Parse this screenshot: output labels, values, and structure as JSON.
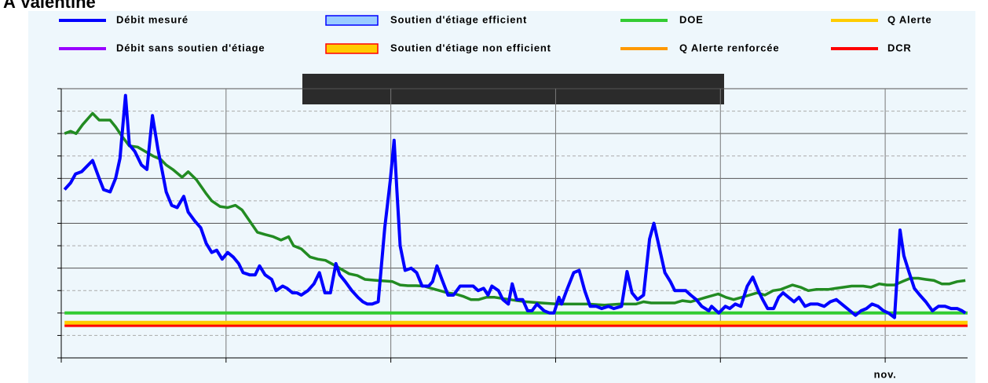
{
  "chart_data": {
    "type": "line",
    "title": "A Valentine",
    "xlim": [
      0,
      165
    ],
    "ylim": [
      0,
      12
    ],
    "xticks": [
      0,
      30,
      60,
      90,
      120,
      150
    ],
    "xtick_labels": [
      {
        "value": 150,
        "label": "nov."
      }
    ],
    "yticks": [
      0,
      1,
      2,
      3,
      4,
      5,
      6,
      7,
      8,
      9,
      10,
      11,
      12
    ],
    "grid": true,
    "legend": [
      {
        "name": "Débit mesuré",
        "color": "#0000ff",
        "kind": "line"
      },
      {
        "name": "Débit sans soutien d'étiage",
        "color": "#9900ff",
        "kind": "line"
      },
      {
        "name": "Soutien d'étiage efficient",
        "color": "#99ccff",
        "border": "#0000ff",
        "kind": "box"
      },
      {
        "name": "Soutien d'étiage non efficient",
        "color": "#ffcc00",
        "border": "#ff0000",
        "kind": "box"
      },
      {
        "name": "DOE",
        "color": "#33cc33",
        "kind": "line"
      },
      {
        "name": "Q Alerte renforcée",
        "color": "#ff9900",
        "kind": "line"
      },
      {
        "name": "Q Alerte",
        "color": "#ffcc00",
        "kind": "line"
      },
      {
        "name": "DCR",
        "color": "#ff0000",
        "kind": "line"
      }
    ],
    "series": [
      {
        "name": "DOE",
        "color": "#33cc33",
        "width": 4,
        "x": [
          0.6,
          165
        ],
        "values": [
          2.0,
          2.0
        ]
      },
      {
        "name": "Q Alerte",
        "color": "#ffcc00",
        "width": 6,
        "x": [
          0.6,
          165
        ],
        "values": [
          1.55,
          1.55
        ]
      },
      {
        "name": "DCR",
        "color": "#ff0000",
        "width": 3,
        "x": [
          0.6,
          165
        ],
        "values": [
          1.43,
          1.43
        ]
      },
      {
        "color": "#228b22",
        "width": 3.5,
        "x": [
          0.6,
          1.7,
          2.7,
          3.9,
          5.7,
          6.9,
          7.9,
          8.9,
          9.9,
          11,
          12.4,
          13.9,
          15.3,
          16.7,
          18.1,
          19.1,
          20.3,
          22,
          23.1,
          24.6,
          26.3,
          27.4,
          28.9,
          30.3,
          31.7,
          32.9,
          34.3,
          35.7,
          37.1,
          38.6,
          40,
          41.4,
          42.3,
          43.7,
          45.3,
          46.7,
          48.1,
          49.6,
          51,
          52.4,
          53.9,
          55.3,
          57.1,
          58.9,
          60.3,
          61.7,
          63.1,
          64.6,
          66,
          67.4,
          68.9,
          70.3,
          71.7,
          73.1,
          74.6,
          76,
          77.4,
          78.9,
          80.3,
          81.7,
          83.1,
          84.6,
          87.4,
          90.3,
          93.1,
          96,
          98.9,
          101.7,
          104.6,
          106,
          107.4,
          110.3,
          111.7,
          113.1,
          114.6,
          116,
          117.4,
          119.6,
          121,
          122.4,
          123.9,
          125.3,
          126.7,
          128.1,
          129.6,
          131,
          133.1,
          134.6,
          136,
          137.4,
          139.6,
          141,
          142.4,
          143.9,
          146,
          147.4,
          148.9,
          150.3,
          151.7,
          153.1,
          154.6,
          156,
          157.4,
          158.9,
          160.3,
          161.7,
          163.1,
          164.6
        ],
        "values": [
          10.0,
          10.1,
          10.0,
          10.4,
          10.9,
          10.6,
          10.6,
          10.6,
          10.3,
          9.9,
          9.45,
          9.4,
          9.2,
          9.0,
          8.85,
          8.6,
          8.4,
          8.05,
          8.3,
          7.94,
          7.35,
          7.0,
          6.75,
          6.7,
          6.8,
          6.6,
          6.1,
          5.6,
          5.5,
          5.4,
          5.25,
          5.4,
          5.0,
          4.86,
          4.5,
          4.4,
          4.35,
          4.15,
          3.95,
          3.75,
          3.67,
          3.5,
          3.46,
          3.43,
          3.4,
          3.25,
          3.22,
          3.22,
          3.2,
          3.1,
          3.0,
          2.9,
          2.85,
          2.75,
          2.6,
          2.6,
          2.7,
          2.7,
          2.65,
          2.6,
          2.55,
          2.5,
          2.45,
          2.4,
          2.4,
          2.4,
          2.35,
          2.4,
          2.4,
          2.5,
          2.45,
          2.45,
          2.45,
          2.55,
          2.5,
          2.6,
          2.7,
          2.85,
          2.7,
          2.6,
          2.7,
          2.8,
          2.9,
          2.8,
          3.0,
          3.05,
          3.25,
          3.15,
          3.0,
          3.05,
          3.05,
          3.1,
          3.15,
          3.2,
          3.2,
          3.15,
          3.3,
          3.25,
          3.25,
          3.4,
          3.55,
          3.55,
          3.5,
          3.45,
          3.3,
          3.3,
          3.4,
          3.45
        ]
      },
      {
        "name": "Débit mesuré",
        "color": "#0000ff",
        "width": 4,
        "x": [
          0.6,
          1.7,
          2.6,
          3.7,
          5.7,
          6.9,
          7.7,
          8.9,
          9.9,
          10.7,
          11.7,
          12.4,
          13.4,
          14.6,
          15.6,
          16.6,
          17.6,
          18.4,
          19.1,
          20.1,
          21.1,
          22.3,
          23.1,
          24.3,
          25.4,
          26.4,
          27.4,
          28.3,
          29.3,
          30.3,
          31.3,
          32.3,
          33.1,
          34.3,
          35.3,
          36.1,
          37.1,
          38.3,
          39.1,
          40.3,
          41.1,
          42.1,
          42.9,
          43.7,
          44.9,
          46.0,
          47.0,
          48.0,
          49.0,
          50.0,
          50.7,
          51.7,
          52.9,
          54.0,
          54.9,
          55.7,
          56.6,
          57.7,
          58.9,
          59.9,
          60.6,
          61.1,
          61.7,
          62.6,
          63.7,
          64.7,
          65.7,
          66.9,
          67.6,
          68.4,
          69.3,
          70.4,
          71.4,
          72.6,
          73.7,
          75.0,
          75.9,
          76.9,
          77.7,
          78.4,
          79.6,
          80.4,
          81.4,
          82.1,
          82.9,
          84.0,
          84.9,
          85.7,
          86.6,
          87.9,
          88.9,
          89.7,
          90.6,
          91.1,
          92.0,
          93.3,
          94.3,
          95.3,
          96.3,
          97.4,
          98.4,
          99.6,
          100.6,
          102.0,
          103.0,
          103.9,
          104.9,
          106.0,
          107.1,
          107.9,
          108.9,
          109.9,
          110.9,
          111.7,
          112.6,
          113.7,
          114.6,
          115.6,
          116.6,
          117.9,
          118.4,
          119.7,
          120.9,
          121.7,
          122.7,
          123.7,
          124.9,
          125.9,
          126.9,
          127.7,
          128.6,
          129.7,
          130.6,
          131.4,
          132.4,
          133.4,
          134.3,
          135.4,
          136.4,
          137.7,
          138.9,
          140.0,
          141.1,
          142.6,
          143.6,
          144.6,
          145.6,
          146.6,
          147.6,
          148.7,
          149.7,
          150.6,
          151.7,
          152.7,
          153.4,
          154.3,
          155.3,
          156.3,
          157.4,
          158.6,
          159.7,
          160.9,
          162.0,
          163.1,
          164.0,
          164.6
        ],
        "values": [
          7.5,
          7.8,
          8.2,
          8.3,
          8.8,
          8.0,
          7.5,
          7.4,
          8.0,
          8.9,
          11.7,
          9.5,
          9.2,
          8.6,
          8.4,
          10.8,
          9.3,
          8.3,
          7.4,
          6.8,
          6.7,
          7.2,
          6.5,
          6.1,
          5.8,
          5.1,
          4.7,
          4.8,
          4.4,
          4.7,
          4.5,
          4.2,
          3.8,
          3.7,
          3.7,
          4.1,
          3.7,
          3.5,
          3.0,
          3.2,
          3.1,
          2.9,
          2.9,
          2.8,
          3.0,
          3.3,
          3.8,
          2.9,
          2.9,
          4.2,
          3.7,
          3.4,
          3.0,
          2.7,
          2.5,
          2.4,
          2.4,
          2.5,
          5.8,
          7.9,
          9.7,
          7.5,
          5.0,
          3.9,
          4.0,
          3.8,
          3.2,
          3.2,
          3.4,
          4.1,
          3.5,
          2.8,
          2.8,
          3.2,
          3.2,
          3.2,
          3.0,
          3.1,
          2.8,
          3.2,
          3.0,
          2.6,
          2.4,
          3.3,
          2.6,
          2.6,
          2.1,
          2.1,
          2.4,
          2.1,
          2.0,
          2.0,
          2.7,
          2.4,
          3.0,
          3.8,
          3.9,
          3.0,
          2.3,
          2.3,
          2.2,
          2.3,
          2.2,
          2.3,
          3.85,
          2.9,
          2.6,
          2.8,
          5.3,
          6.0,
          4.9,
          3.8,
          3.4,
          3.0,
          3.0,
          3.0,
          2.8,
          2.6,
          2.3,
          2.1,
          2.3,
          2.0,
          2.3,
          2.2,
          2.4,
          2.3,
          3.2,
          3.6,
          3.0,
          2.6,
          2.2,
          2.2,
          2.7,
          2.9,
          2.7,
          2.5,
          2.7,
          2.3,
          2.4,
          2.4,
          2.3,
          2.5,
          2.6,
          2.3,
          2.1,
          1.9,
          2.1,
          2.2,
          2.4,
          2.3,
          2.1,
          2.0,
          1.8,
          5.7,
          4.55,
          3.85,
          3.1,
          2.8,
          2.5,
          2.1,
          2.3,
          2.3,
          2.2,
          2.2,
          2.1,
          2.0
        ]
      }
    ]
  }
}
